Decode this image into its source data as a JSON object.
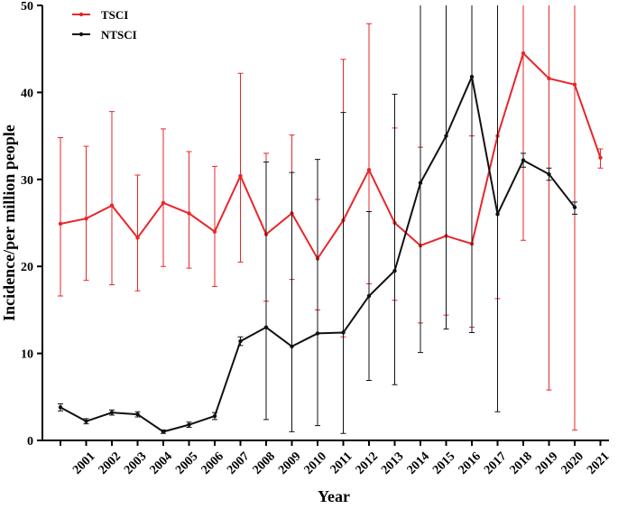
{
  "chart_data": {
    "type": "line",
    "x_label": "Year",
    "y_label": "Incidence/per million people",
    "categories": [
      null,
      "2001",
      "2002",
      "2003",
      "2004",
      "2005",
      "2006",
      "2007",
      "2008",
      "2009",
      "2010",
      "2011",
      "2012",
      "2013",
      "2014",
      "2015",
      "2016",
      "2017",
      "2018",
      "2019",
      "2020",
      "2021"
    ],
    "ylim": [
      0,
      50
    ],
    "yticks": [
      0,
      10,
      20,
      30,
      40,
      50
    ],
    "grid": false,
    "legend": "top-left",
    "series": [
      {
        "name": "TSCI",
        "color": "#e8262a",
        "values": [
          24.9,
          25.5,
          27.0,
          23.3,
          27.3,
          26.1,
          24.0,
          30.4,
          23.7,
          26.1,
          20.9,
          25.3,
          31.1,
          25.0,
          22.4,
          23.5,
          22.6,
          35.0,
          44.5,
          41.6,
          40.9,
          32.5
        ],
        "error_plus": [
          9.9,
          8.3,
          10.8,
          7.2,
          8.5,
          7.1,
          7.5,
          11.8,
          9.3,
          9.0,
          6.8,
          18.5,
          16.8,
          10.9,
          11.3,
          27,
          12.4,
          20,
          20,
          20,
          20,
          1.0
        ],
        "error_minus": [
          8.3,
          7.1,
          9.1,
          6.1,
          7.3,
          6.3,
          6.3,
          9.9,
          7.7,
          7.6,
          5.9,
          13.4,
          13.1,
          8.9,
          8.9,
          9.1,
          9.6,
          18.7,
          21.5,
          35.8,
          39.7,
          1.2
        ]
      },
      {
        "name": "NTSCI",
        "color": "#111111",
        "values": [
          3.8,
          2.2,
          3.2,
          3.0,
          1.0,
          1.8,
          2.8,
          11.4,
          13.0,
          10.8,
          12.3,
          12.4,
          16.6,
          19.5,
          29.6,
          35.0,
          41.8,
          26.0,
          32.2,
          30.6,
          26.8,
          null
        ],
        "error_plus": [
          0.4,
          0.3,
          0.3,
          0.3,
          0.2,
          0.3,
          0.4,
          0.5,
          19.0,
          20.0,
          20.0,
          25.3,
          9.7,
          20.3,
          25,
          20,
          20,
          25,
          0.8,
          0.7,
          0.6,
          null
        ],
        "error_minus": [
          0.4,
          0.3,
          0.3,
          0.3,
          0.2,
          0.3,
          0.4,
          0.5,
          10.6,
          9.8,
          10.6,
          11.6,
          9.7,
          13.1,
          19.5,
          22.2,
          29.4,
          22.7,
          0.8,
          0.7,
          0.8,
          null
        ]
      }
    ]
  }
}
